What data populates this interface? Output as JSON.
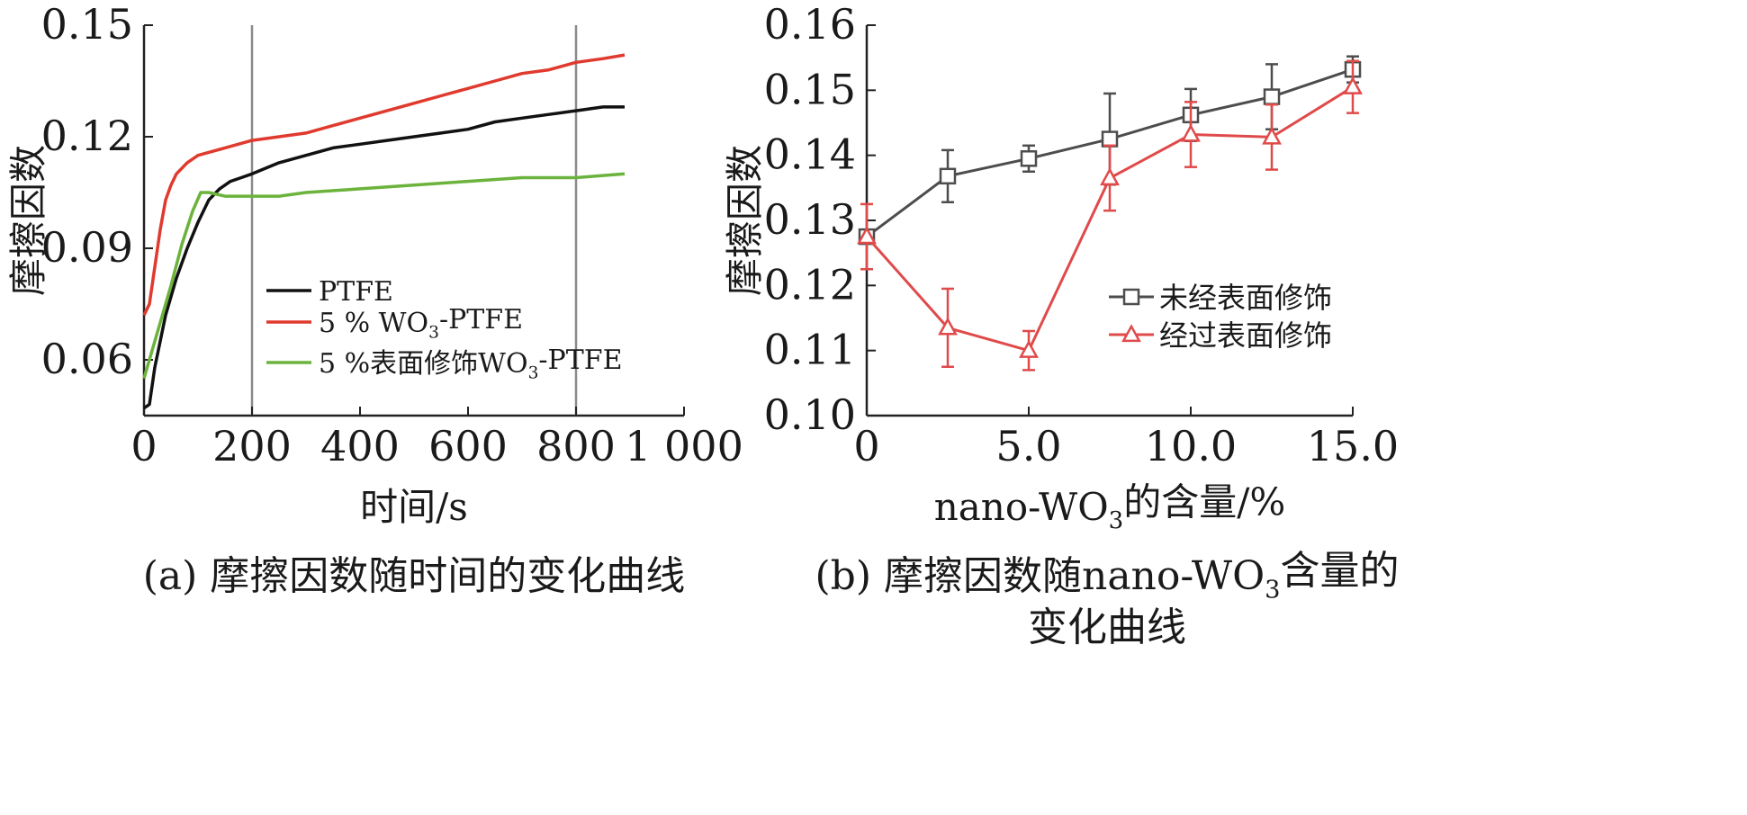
{
  "chart_data": [
    {
      "type": "line",
      "caption": "(a) 摩擦因数随时间的变化曲线",
      "xlabel": "时间/s",
      "ylabel": "摩擦因数",
      "xlim": [
        0,
        1000
      ],
      "ylim": [
        0.045,
        0.15
      ],
      "xticks": [
        0,
        200,
        400,
        600,
        800,
        1000
      ],
      "xtick_labels": [
        "0",
        "200",
        "400",
        "600",
        "800",
        "1 000"
      ],
      "yticks": [
        0.06,
        0.09,
        0.12,
        0.15
      ],
      "ytick_labels": [
        "0.06",
        "0.09",
        "0.12",
        "0.15"
      ],
      "vlines": [
        200,
        800
      ],
      "legend_position": "center",
      "series": [
        {
          "name": "PTFE",
          "color": "#111111",
          "x": [
            0,
            10,
            20,
            40,
            60,
            80,
            100,
            120,
            140,
            160,
            180,
            200,
            250,
            300,
            350,
            400,
            450,
            500,
            550,
            600,
            650,
            700,
            750,
            800,
            850,
            890
          ],
          "y": [
            0.047,
            0.048,
            0.058,
            0.072,
            0.082,
            0.09,
            0.097,
            0.103,
            0.106,
            0.108,
            0.109,
            0.11,
            0.113,
            0.115,
            0.117,
            0.118,
            0.119,
            0.12,
            0.121,
            0.122,
            0.124,
            0.125,
            0.126,
            0.127,
            0.128,
            0.128
          ]
        },
        {
          "name": "5 % WO3-PTFE",
          "color": "#e03a2e",
          "x": [
            0,
            10,
            20,
            30,
            40,
            50,
            60,
            80,
            100,
            150,
            200,
            250,
            300,
            350,
            400,
            450,
            500,
            550,
            600,
            650,
            700,
            750,
            800,
            850,
            890
          ],
          "y": [
            0.072,
            0.075,
            0.085,
            0.095,
            0.103,
            0.107,
            0.11,
            0.113,
            0.115,
            0.117,
            0.119,
            0.12,
            0.121,
            0.123,
            0.125,
            0.127,
            0.129,
            0.131,
            0.133,
            0.135,
            0.137,
            0.138,
            0.14,
            0.141,
            0.142
          ]
        },
        {
          "name": "5 %表面修饰WO3-PTFE",
          "color": "#6bb33c",
          "x": [
            0,
            10,
            30,
            50,
            70,
            90,
            105,
            120,
            150,
            200,
            250,
            300,
            400,
            500,
            600,
            700,
            800,
            890
          ],
          "y": [
            0.055,
            0.06,
            0.07,
            0.08,
            0.091,
            0.1,
            0.105,
            0.105,
            0.104,
            0.104,
            0.104,
            0.105,
            0.106,
            0.107,
            0.108,
            0.109,
            0.109,
            0.11
          ]
        }
      ]
    },
    {
      "type": "line",
      "caption_line1": "(b) 摩擦因数随nano-WO3含量的",
      "caption_line2": "变化曲线",
      "xlabel": "nano-WO3的含量/%",
      "ylabel": "摩擦因数",
      "xlim": [
        0,
        15
      ],
      "ylim": [
        0.1,
        0.16
      ],
      "xticks": [
        0,
        5,
        10,
        15
      ],
      "xtick_labels": [
        "0",
        "5.0",
        "10.0",
        "15.0"
      ],
      "yticks": [
        0.1,
        0.11,
        0.12,
        0.13,
        0.14,
        0.15,
        0.16
      ],
      "ytick_labels": [
        "0.10",
        "0.11",
        "0.12",
        "0.13",
        "0.14",
        "0.15",
        "0.16"
      ],
      "legend_position": "right",
      "series": [
        {
          "name": "未经表面修饰",
          "color": "#4d4d4d",
          "marker": "square",
          "x": [
            0,
            2.5,
            5,
            7.5,
            10,
            12.5,
            15
          ],
          "y": [
            0.1275,
            0.1368,
            0.1395,
            0.1425,
            0.1462,
            0.149,
            0.1532
          ],
          "err": [
            0,
            0.004,
            0.002,
            0.007,
            0.004,
            0.005,
            0.002
          ]
        },
        {
          "name": "经过表面修饰",
          "color": "#e04a4a",
          "marker": "triangle",
          "x": [
            0,
            2.5,
            5,
            7.5,
            10,
            12.5,
            15
          ],
          "y": [
            0.1275,
            0.1135,
            0.11,
            0.1365,
            0.1432,
            0.1428,
            0.1505
          ],
          "err": [
            0.005,
            0.006,
            0.003,
            0.005,
            0.005,
            0.005,
            0.004
          ]
        }
      ]
    }
  ]
}
